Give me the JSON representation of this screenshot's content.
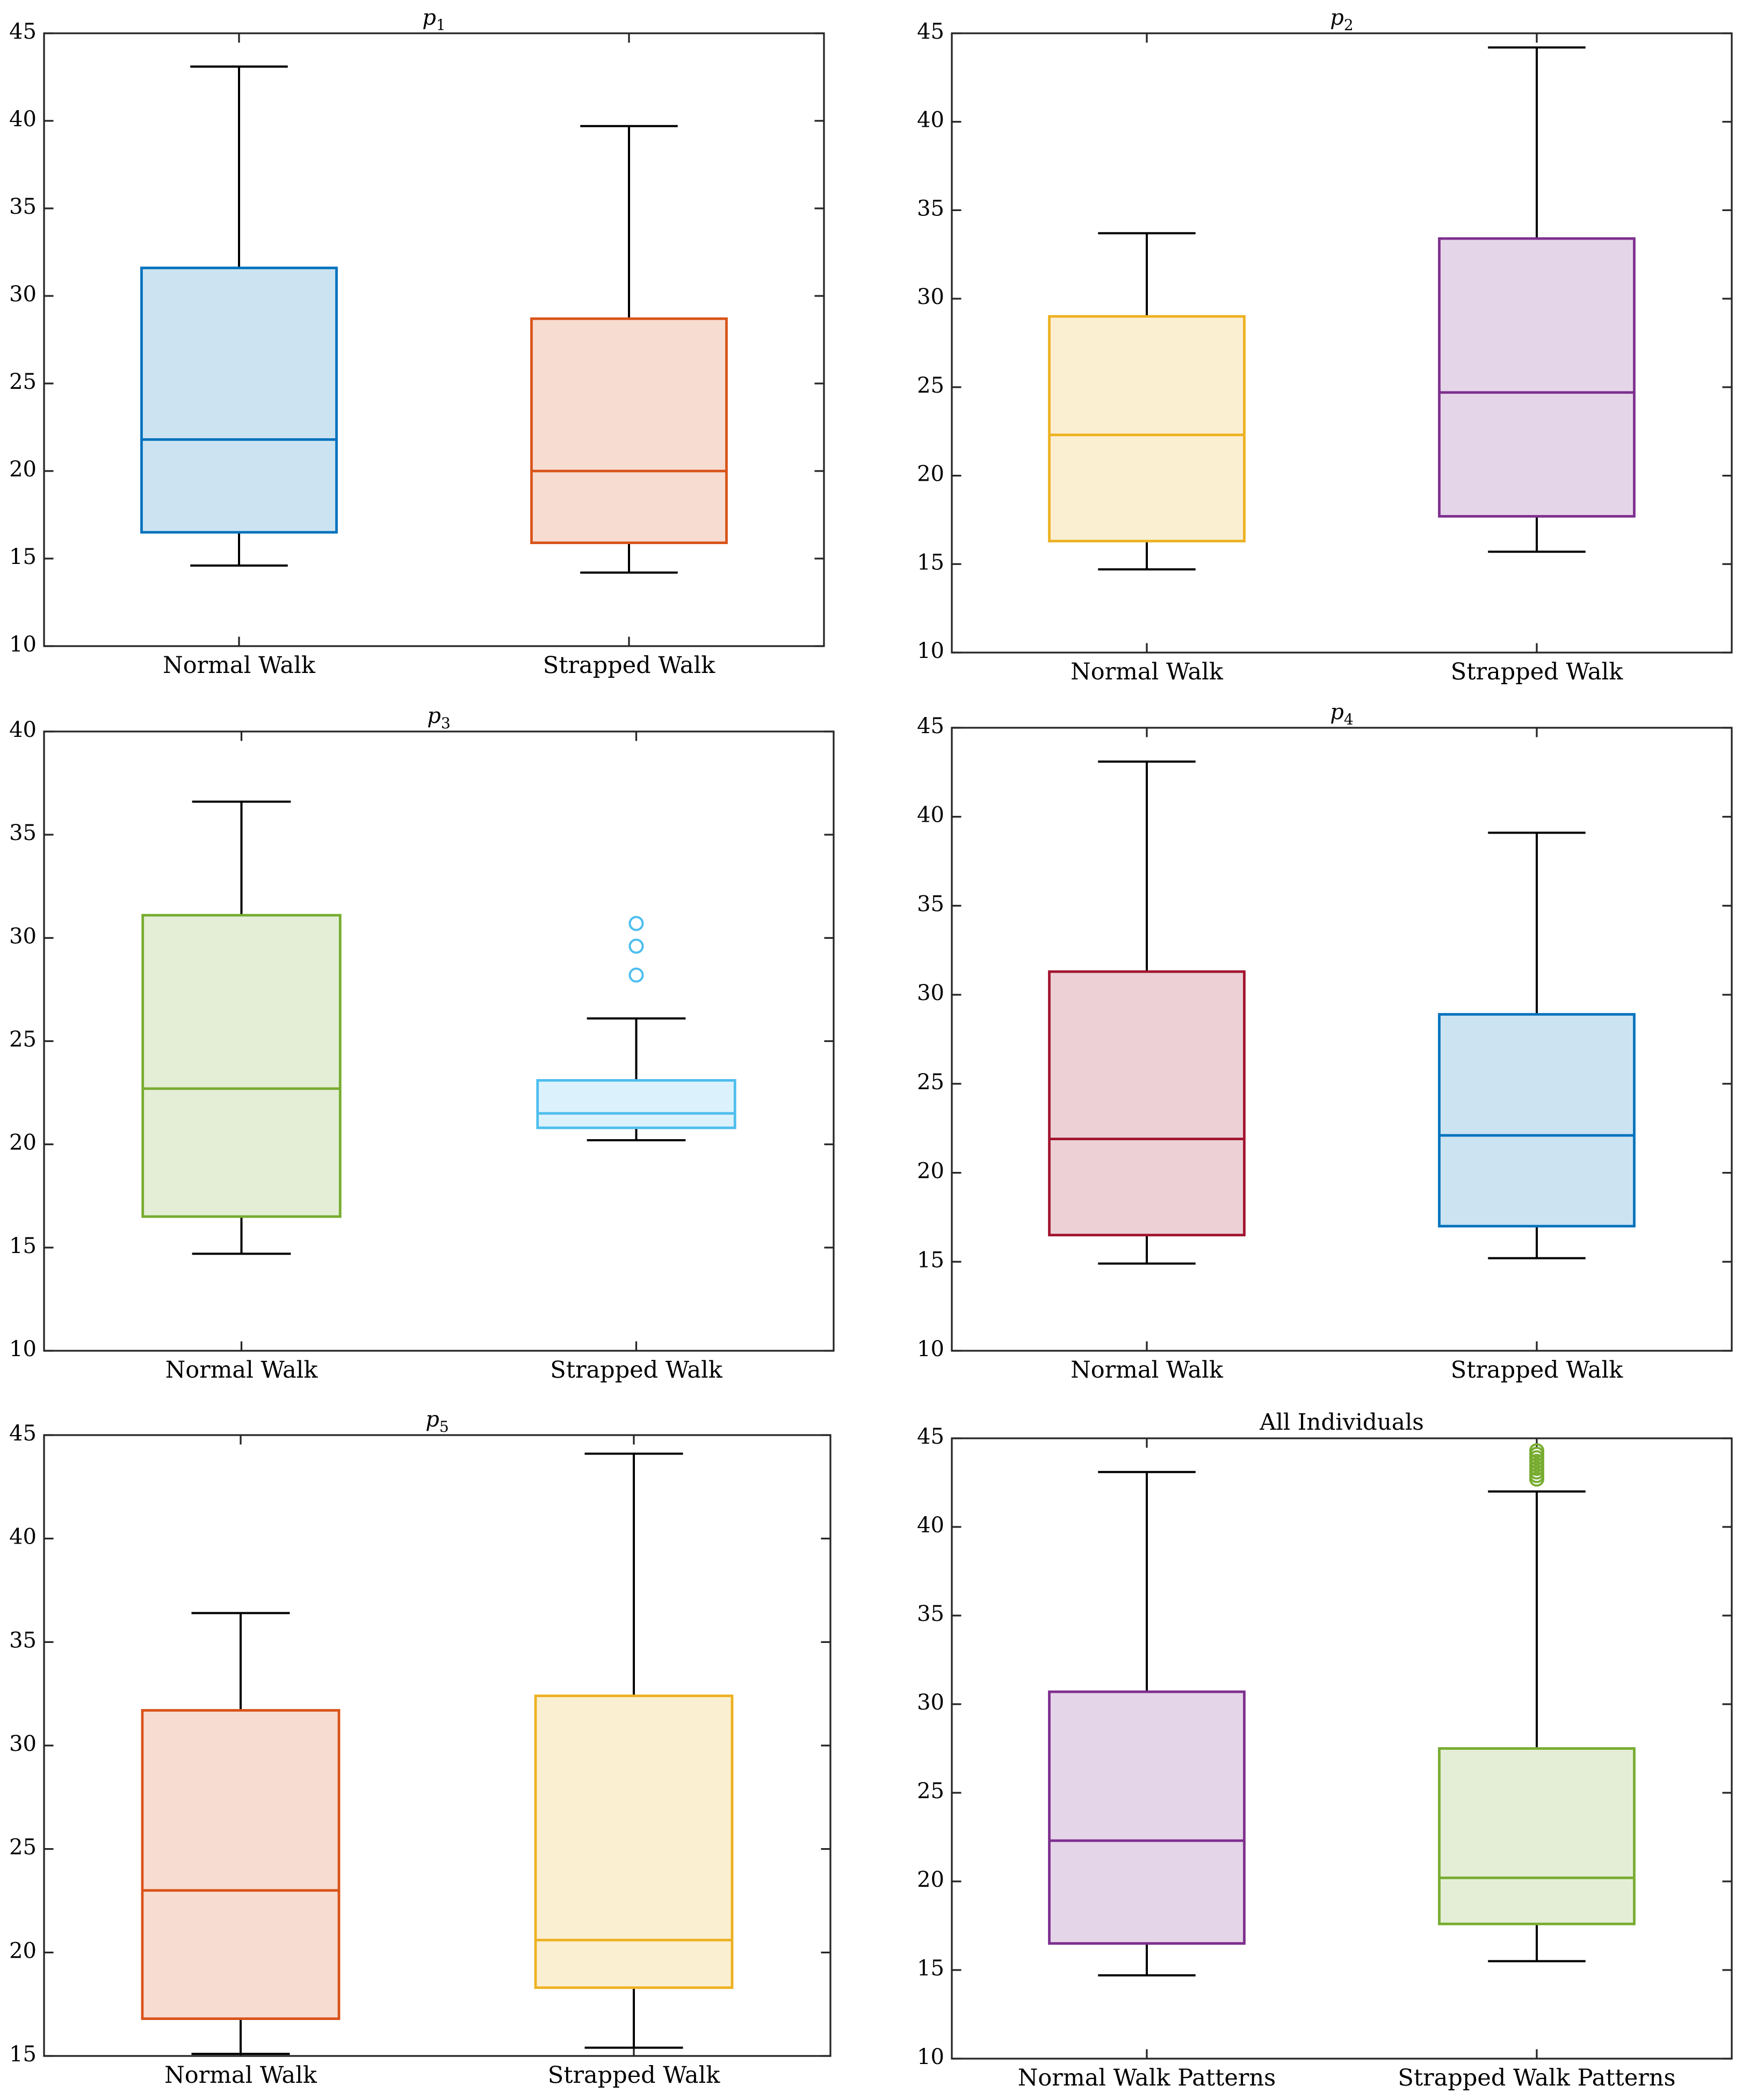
{
  "chart_data": [
    {
      "type": "box",
      "title": "p",
      "title_sub": "1",
      "categories": [
        "Normal Walk",
        "Strapped Walk"
      ],
      "ylim": [
        10,
        45
      ],
      "yticks": [
        10,
        15,
        20,
        25,
        30,
        35,
        40,
        45
      ],
      "boxes": [
        {
          "name": "Normal Walk",
          "color": "#0072BD",
          "fill": "#CCE3F1",
          "whisker_low": 14.6,
          "q1": 16.5,
          "median": 21.8,
          "q3": 31.6,
          "whisker_high": 43.1,
          "outliers": []
        },
        {
          "name": "Strapped Walk",
          "color": "#D95319",
          "fill": "#F7DDD1",
          "whisker_low": 14.2,
          "q1": 15.9,
          "median": 20.0,
          "q3": 28.7,
          "whisker_high": 39.7,
          "outliers": []
        }
      ]
    },
    {
      "type": "box",
      "title": "p",
      "title_sub": "2",
      "categories": [
        "Normal Walk",
        "Strapped Walk"
      ],
      "ylim": [
        10,
        45
      ],
      "yticks": [
        10,
        15,
        20,
        25,
        30,
        35,
        40,
        45
      ],
      "boxes": [
        {
          "name": "Normal Walk",
          "color": "#EDB120",
          "fill": "#FBEFD2",
          "whisker_low": 14.7,
          "q1": 16.3,
          "median": 22.3,
          "q3": 29.0,
          "whisker_high": 33.7,
          "outliers": []
        },
        {
          "name": "Strapped Walk",
          "color": "#7E2F8E",
          "fill": "#E5D5E8",
          "whisker_low": 15.7,
          "q1": 17.7,
          "median": 24.7,
          "q3": 33.4,
          "whisker_high": 44.2,
          "outliers": []
        }
      ]
    },
    {
      "type": "box",
      "title": "p",
      "title_sub": "3",
      "categories": [
        "Normal Walk",
        "Strapped Walk"
      ],
      "ylim": [
        10,
        40
      ],
      "yticks": [
        10,
        15,
        20,
        25,
        30,
        35,
        40
      ],
      "boxes": [
        {
          "name": "Normal Walk",
          "color": "#77AC30",
          "fill": "#E4EED6",
          "whisker_low": 14.7,
          "q1": 16.5,
          "median": 22.7,
          "q3": 31.1,
          "whisker_high": 36.6,
          "outliers": []
        },
        {
          "name": "Strapped Walk",
          "color": "#4DBEEE",
          "fill": "#DBF2FC",
          "whisker_low": 20.2,
          "q1": 20.8,
          "median": 21.5,
          "q3": 23.1,
          "whisker_high": 26.1,
          "outliers": [
            28.2,
            29.6,
            30.7
          ]
        }
      ]
    },
    {
      "type": "box",
      "title": "p",
      "title_sub": "4",
      "categories": [
        "Normal Walk",
        "Strapped Walk"
      ],
      "ylim": [
        10,
        45
      ],
      "yticks": [
        10,
        15,
        20,
        25,
        30,
        35,
        40,
        45
      ],
      "boxes": [
        {
          "name": "Normal Walk",
          "color": "#A2142F",
          "fill": "#ECD0D5",
          "whisker_low": 14.9,
          "q1": 16.5,
          "median": 21.9,
          "q3": 31.3,
          "whisker_high": 43.1,
          "outliers": []
        },
        {
          "name": "Strapped Walk",
          "color": "#0072BD",
          "fill": "#CCE3F1",
          "whisker_low": 15.2,
          "q1": 17.0,
          "median": 22.1,
          "q3": 28.9,
          "whisker_high": 39.1,
          "outliers": []
        }
      ]
    },
    {
      "type": "box",
      "title": "p",
      "title_sub": "5",
      "categories": [
        "Normal Walk",
        "Strapped Walk"
      ],
      "ylim": [
        15,
        45
      ],
      "yticks": [
        15,
        20,
        25,
        30,
        35,
        40,
        45
      ],
      "boxes": [
        {
          "name": "Normal Walk",
          "color": "#D95319",
          "fill": "#F7DDD1",
          "whisker_low": 15.1,
          "q1": 16.8,
          "median": 23.0,
          "q3": 31.7,
          "whisker_high": 36.4,
          "outliers": []
        },
        {
          "name": "Strapped Walk",
          "color": "#EDB120",
          "fill": "#FBEFD2",
          "whisker_low": 15.4,
          "q1": 18.3,
          "median": 20.6,
          "q3": 32.4,
          "whisker_high": 44.1,
          "outliers": []
        }
      ]
    },
    {
      "type": "box",
      "title": "All Individuals",
      "title_sub": "",
      "categories": [
        "Normal Walk Patterns",
        "Strapped Walk Patterns"
      ],
      "ylim": [
        10,
        45
      ],
      "yticks": [
        10,
        15,
        20,
        25,
        30,
        35,
        40,
        45
      ],
      "boxes": [
        {
          "name": "Normal Walk Patterns",
          "color": "#7E2F8E",
          "fill": "#E5D5E8",
          "whisker_low": 14.7,
          "q1": 16.5,
          "median": 22.3,
          "q3": 30.7,
          "whisker_high": 43.1,
          "outliers": []
        },
        {
          "name": "Strapped Walk Patterns",
          "color": "#77AC30",
          "fill": "#E4EED6",
          "whisker_low": 15.5,
          "q1": 17.6,
          "median": 20.2,
          "q3": 27.5,
          "whisker_high": 42.0,
          "outliers": [
            42.7,
            42.9,
            43.1,
            43.3,
            43.5,
            43.7,
            43.9,
            44.1,
            44.3
          ]
        }
      ]
    }
  ]
}
